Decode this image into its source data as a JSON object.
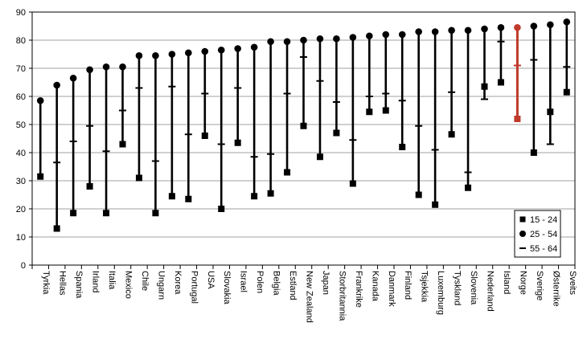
{
  "chart_data": {
    "type": "scatter",
    "title": "",
    "xlabel": "",
    "ylabel": "",
    "ylim": [
      0,
      90
    ],
    "yticks": [
      0,
      10,
      20,
      30,
      40,
      50,
      60,
      70,
      80,
      90
    ],
    "grid": true,
    "legend_position": "bottom-right",
    "highlight_category": "Norge",
    "colors": {
      "default": "#000000",
      "highlight": "#c0392b",
      "grid": "#808080"
    },
    "categories": [
      "Tyrkia",
      "Hellas",
      "Spania",
      "Irland",
      "Italia",
      "Mexico",
      "Chile",
      "Ungarn",
      "Korea",
      "Portugal",
      "USA",
      "Slovakia",
      "Israel",
      "Polen",
      "Belgia",
      "Estland",
      "New Zealand",
      "Japan",
      "Storbritannia",
      "Frankrike",
      "Kanada",
      "Danmark",
      "Finland",
      "Tsjekkia",
      "Luxemburg",
      "Tyskland",
      "Slovenia",
      "Nederland",
      "Island",
      "Norge",
      "Sverige",
      "Østerrike",
      "Sveits"
    ],
    "series": [
      {
        "name": "15 - 24",
        "marker": "square",
        "values": [
          31.5,
          13,
          18.5,
          28,
          18.5,
          43,
          31,
          18.5,
          24.5,
          23.5,
          46,
          20,
          43.5,
          24.5,
          25.5,
          33,
          49.5,
          38.5,
          47,
          29,
          54.5,
          55,
          42,
          25,
          21.5,
          46.5,
          27.5,
          63.5,
          65,
          52,
          40,
          54.5,
          61.5
        ]
      },
      {
        "name": "25 - 54",
        "marker": "circle",
        "values": [
          58.5,
          64,
          66.5,
          69.5,
          70.5,
          70.5,
          74.5,
          74.5,
          75,
          75.5,
          76,
          76.5,
          77,
          77.5,
          79.5,
          79.5,
          80,
          80.5,
          80.5,
          81,
          81.5,
          82,
          82,
          83,
          83,
          83.5,
          83.5,
          84,
          84.5,
          84.5,
          85,
          85.5,
          86.5
        ]
      },
      {
        "name": "55 - 64",
        "marker": "dash",
        "values": [
          null,
          36.5,
          44,
          49.5,
          40.5,
          55,
          63,
          37,
          63.5,
          46.5,
          61,
          43,
          63,
          38.5,
          39.5,
          61,
          74,
          65.5,
          58,
          44.5,
          60,
          61,
          58.5,
          49.5,
          41,
          61.5,
          33,
          59,
          79.5,
          71,
          73,
          43,
          70.5
        ]
      }
    ]
  }
}
